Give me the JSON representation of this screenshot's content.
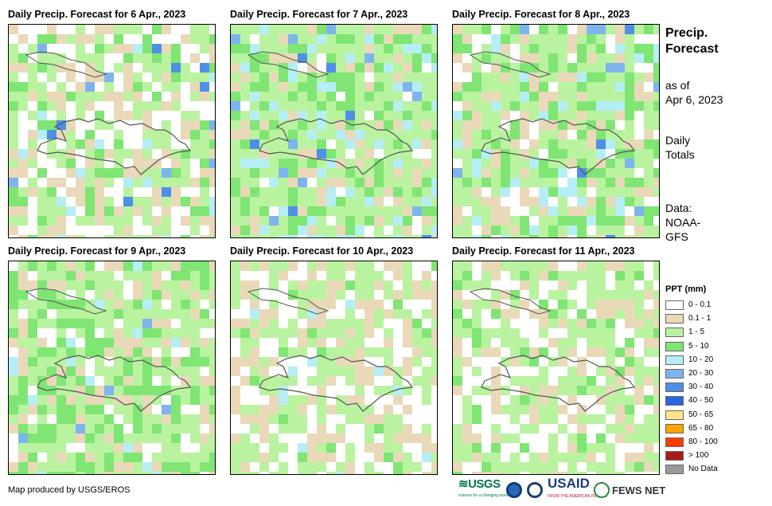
{
  "panels": [
    {
      "title": "Daily Precip. Forecast for 6 Apr., 2023"
    },
    {
      "title": "Daily Precip. Forecast for 7 Apr., 2023"
    },
    {
      "title": "Daily Precip. Forecast for 8 Apr., 2023"
    },
    {
      "title": "Daily Precip. Forecast for 9 Apr., 2023"
    },
    {
      "title": "Daily Precip. Forecast for 10 Apr., 2023"
    },
    {
      "title": "Daily Precip. Forecast for 11 Apr., 2023"
    }
  ],
  "side": {
    "title_line1": "Precip.",
    "title_line2": "Forecast",
    "asof_line1": "as of",
    "asof_line2": "Apr 6, 2023",
    "totals_line1": "Daily",
    "totals_line2": "Totals",
    "data_line1": "Data:",
    "data_line2": "NOAA-",
    "data_line3": "GFS"
  },
  "legend": {
    "title": "PPT (mm)",
    "items": [
      {
        "label": "0 - 0.1",
        "color": "#ffffff"
      },
      {
        "label": "0.1 - 1",
        "color": "#ead9b8"
      },
      {
        "label": "1 - 5",
        "color": "#b9f3a0"
      },
      {
        "label": "5 - 10",
        "color": "#7fe573"
      },
      {
        "label": "10 - 20",
        "color": "#b5eef5"
      },
      {
        "label": "20 - 30",
        "color": "#7db4ee"
      },
      {
        "label": "30 - 40",
        "color": "#4f8fe8"
      },
      {
        "label": "40 - 50",
        "color": "#2a64e0"
      },
      {
        "label": "50 - 65",
        "color": "#ffe58a"
      },
      {
        "label": "65 - 80",
        "color": "#ffa500"
      },
      {
        "label": "80 - 100",
        "color": "#ff3c00"
      },
      {
        "label": "> 100",
        "color": "#a51c1c"
      },
      {
        "label": "No Data",
        "color": "#999999"
      }
    ]
  },
  "credit": "Map produced by USGS/EROS",
  "logos": {
    "usgs": "USGS",
    "usgs_tagline": "science for a changing world",
    "usaid": "USAID",
    "usaid_tagline": "FROM THE AMERICAN PEOPLE",
    "fews": "FEWS NET"
  }
}
